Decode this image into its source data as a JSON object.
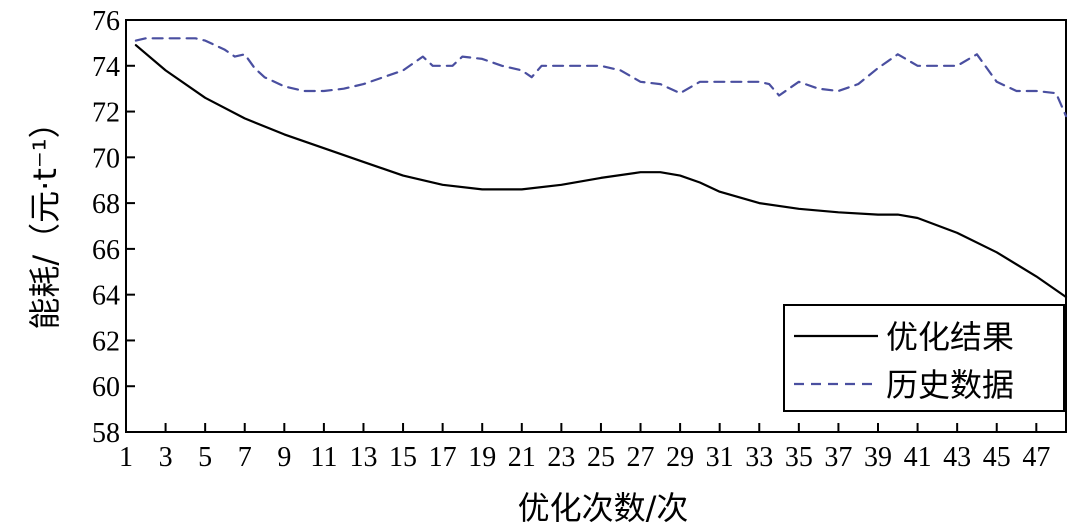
{
  "chart_data": {
    "type": "line",
    "title": "",
    "xlabel": "优化次数/次",
    "ylabel": "能耗/（元·t⁻¹）",
    "xlim": [
      1,
      48.5
    ],
    "ylim": [
      58,
      76
    ],
    "xticks": [
      1,
      3,
      5,
      7,
      9,
      11,
      13,
      15,
      17,
      19,
      21,
      23,
      25,
      27,
      29,
      31,
      33,
      35,
      37,
      39,
      41,
      43,
      45,
      47
    ],
    "yticks": [
      58,
      60,
      62,
      64,
      66,
      68,
      70,
      72,
      74,
      76
    ],
    "grid": false,
    "legend_position": "bottom-right",
    "series": [
      {
        "name": "优化结果",
        "color": "#000000",
        "style": "solid",
        "x": [
          1.5,
          3,
          5,
          7,
          9,
          11,
          13,
          15,
          17,
          19,
          21,
          23,
          25,
          27,
          28,
          29,
          30,
          31,
          33,
          35,
          37,
          39,
          40,
          41,
          43,
          45,
          47,
          48.5
        ],
        "y": [
          74.9,
          73.8,
          72.6,
          71.7,
          71.0,
          70.4,
          69.8,
          69.2,
          68.8,
          68.6,
          68.6,
          68.8,
          69.1,
          69.35,
          69.35,
          69.2,
          68.9,
          68.5,
          68.0,
          67.75,
          67.6,
          67.5,
          67.5,
          67.35,
          66.7,
          65.85,
          64.8,
          63.9
        ]
      },
      {
        "name": "历史数据",
        "color": "#4a4fa0",
        "style": "dashed",
        "x": [
          1.5,
          2,
          3,
          4,
          4.5,
          5,
          6,
          6.5,
          7,
          7.5,
          8,
          9,
          10,
          11,
          12,
          13,
          14,
          15,
          16,
          16.5,
          17,
          17.5,
          18,
          19,
          20,
          21,
          21.5,
          22,
          23,
          24,
          25,
          26,
          27,
          28,
          29,
          30,
          31,
          32,
          33,
          33.5,
          34,
          35,
          36,
          37,
          38,
          39,
          40,
          41,
          42,
          43,
          44,
          45,
          46,
          47,
          48,
          48.5
        ],
        "y": [
          75.1,
          75.2,
          75.2,
          75.2,
          75.2,
          75.1,
          74.7,
          74.4,
          74.5,
          73.9,
          73.5,
          73.1,
          72.9,
          72.9,
          73.0,
          73.2,
          73.5,
          73.8,
          74.4,
          74.0,
          74.0,
          74.0,
          74.4,
          74.3,
          74.0,
          73.8,
          73.5,
          74.0,
          74.0,
          74.0,
          74.0,
          73.8,
          73.3,
          73.2,
          72.8,
          73.3,
          73.3,
          73.3,
          73.3,
          73.2,
          72.7,
          73.3,
          73.0,
          72.9,
          73.2,
          73.9,
          74.5,
          74.0,
          74.0,
          74.0,
          74.5,
          73.3,
          72.9,
          72.9,
          72.8,
          71.8
        ]
      }
    ]
  }
}
